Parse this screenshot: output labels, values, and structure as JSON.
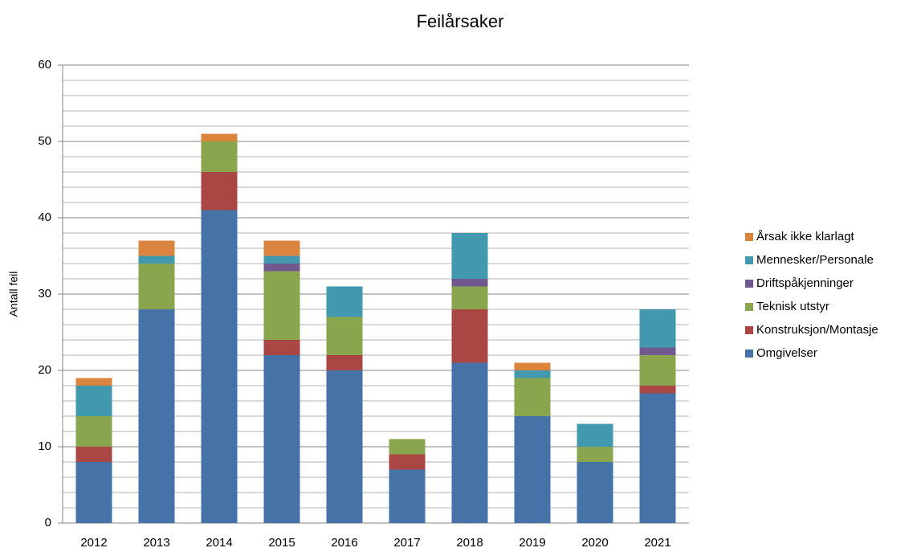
{
  "chart_data": {
    "type": "stacked_bar",
    "title": "Feilårsaker",
    "y_label": "Antall feil",
    "categories": [
      "2012",
      "2013",
      "2014",
      "2015",
      "2016",
      "2017",
      "2018",
      "2019",
      "2020",
      "2021"
    ],
    "series": [
      {
        "name": "Omgivelser",
        "color": "#4572a7",
        "values": [
          8,
          28,
          41,
          22,
          20,
          7,
          21,
          14,
          8,
          17
        ]
      },
      {
        "name": "Konstruksjon/Montasje",
        "color": "#aa4643",
        "values": [
          2,
          0,
          5,
          2,
          2,
          2,
          7,
          0,
          0,
          1
        ]
      },
      {
        "name": "Teknisk utstyr",
        "color": "#89a54e",
        "values": [
          4,
          6,
          4,
          9,
          5,
          2,
          3,
          5,
          2,
          4
        ]
      },
      {
        "name": "Driftspåkjenninger",
        "color": "#71588f",
        "values": [
          0,
          0,
          0,
          1,
          0,
          0,
          1,
          0,
          0,
          1
        ]
      },
      {
        "name": "Mennesker/Personale",
        "color": "#4198af",
        "values": [
          4,
          1,
          0,
          1,
          4,
          0,
          6,
          1,
          3,
          5
        ]
      },
      {
        "name": "Årsak ikke klarlagt",
        "color": "#db843d",
        "values": [
          1,
          2,
          1,
          2,
          0,
          0,
          0,
          1,
          0,
          0
        ]
      }
    ],
    "ylim": [
      0,
      60
    ],
    "yticks": [
      0,
      10,
      20,
      30,
      40,
      50,
      60
    ],
    "minor_yticks": [
      2,
      4,
      6,
      8,
      12,
      14,
      16,
      18,
      22,
      24,
      26,
      28,
      32,
      34,
      36,
      38,
      42,
      44,
      46,
      48,
      52,
      54,
      56,
      58
    ],
    "grid": true,
    "legend": "right"
  }
}
